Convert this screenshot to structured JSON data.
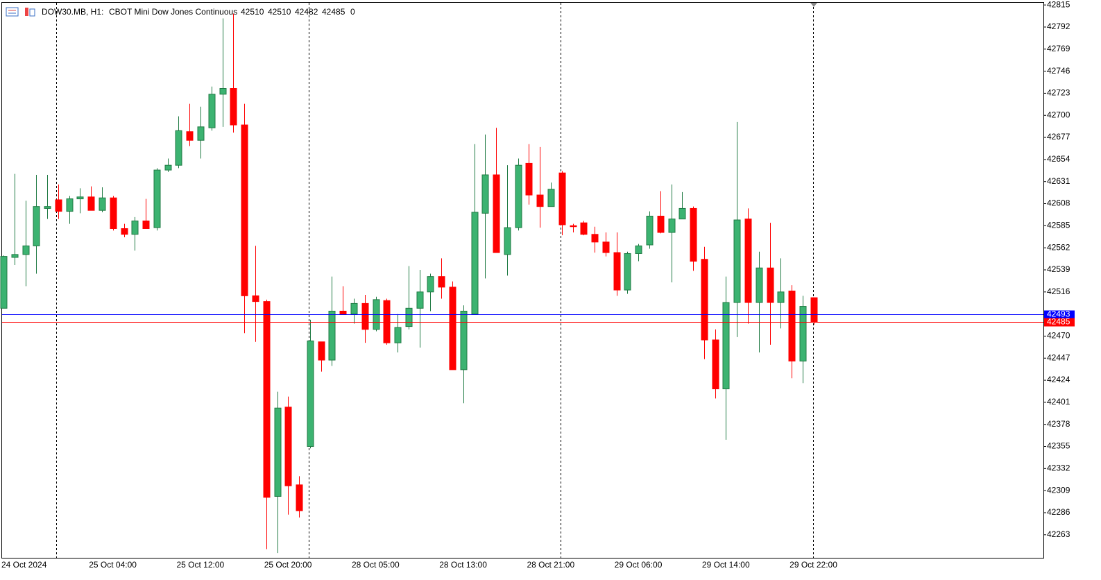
{
  "chart_data": {
    "type": "candlestick",
    "symbol": "DOW30.MB, H1:",
    "title": "CBOT Mini Dow Jones Continuous",
    "info": 0,
    "categories": [
      "24 Oct 2024",
      null,
      null,
      null,
      null,
      null,
      null,
      null,
      "25 Oct 04:00",
      null,
      null,
      null,
      null,
      null,
      null,
      null,
      "25 Oct 12:00",
      null,
      null,
      null,
      null,
      null,
      null,
      null,
      "25 Oct 20:00",
      null,
      null,
      null,
      null,
      null,
      null,
      null,
      "28 Oct 05:00",
      null,
      null,
      null,
      null,
      null,
      null,
      null,
      "28 Oct 13:00",
      null,
      null,
      null,
      null,
      null,
      null,
      null,
      "28 Oct 21:00",
      null,
      null,
      null,
      null,
      null,
      null,
      null,
      "29 Oct 06:00",
      null,
      null,
      null,
      null,
      null,
      null,
      null,
      "29 Oct 14:00",
      null,
      null,
      null,
      null,
      null,
      null,
      null,
      "29 Oct 22:00",
      null,
      null
    ],
    "open": [
      42499,
      42552,
      42555,
      42564,
      42603,
      42612,
      42600,
      42613,
      42615,
      42601,
      42614,
      42582,
      42576,
      42590,
      42583,
      42643,
      42648,
      42683,
      42674,
      42687,
      42722,
      42728,
      42690,
      42512,
      42506,
      42303,
      42396,
      42315,
      42355,
      42464,
      42445,
      42496,
      42493,
      42504,
      42477,
      42507,
      42463,
      42480,
      42499,
      42516,
      42532,
      42521,
      42435,
      42493,
      42598,
      42638,
      42555,
      42583,
      42650,
      42617,
      42605,
      42640,
      42585,
      42588,
      42576,
      42568,
      42557,
      42518,
      42556,
      42565,
      42595,
      42578,
      42592,
      42603,
      42550,
      42466,
      42415,
      42505,
      42592,
      42505,
      42541,
      42505,
      42517,
      42444,
      42510
    ],
    "high": [
      42554,
      42639,
      42611,
      42638,
      42638,
      42628,
      42616,
      42624,
      42626,
      42625,
      42616,
      42587,
      42594,
      42613,
      42645,
      42655,
      42699,
      42712,
      42709,
      42730,
      42801,
      42806,
      42712,
      42564,
      42508,
      42412,
      42407,
      42324,
      42487,
      42464,
      42532,
      42522,
      42509,
      42513,
      42511,
      42509,
      42493,
      42543,
      42539,
      42535,
      42551,
      42527,
      42502,
      42670,
      42680,
      42687,
      42648,
      42655,
      42670,
      42667,
      42630,
      42642,
      42587,
      42590,
      42584,
      42578,
      42578,
      42558,
      42566,
      42600,
      42621,
      42628,
      42620,
      42605,
      42563,
      42477,
      42532,
      42693,
      42603,
      42558,
      42588,
      42551,
      42523,
      42512,
      42510
    ],
    "low": [
      42499,
      42544,
      42522,
      42535,
      42592,
      42592,
      42587,
      42598,
      42601,
      42599,
      42580,
      42573,
      42559,
      42582,
      42580,
      42641,
      42645,
      42668,
      42655,
      42684,
      42688,
      42682,
      42473,
      42464,
      42248,
      42244,
      42284,
      42281,
      42353,
      42433,
      42439,
      42493,
      42483,
      42463,
      42475,
      42461,
      42453,
      42477,
      42458,
      42496,
      42509,
      42435,
      42400,
      42493,
      42530,
      42557,
      42533,
      42580,
      42607,
      42583,
      42605,
      42575,
      42578,
      42575,
      42557,
      42553,
      42512,
      42514,
      42548,
      42561,
      42577,
      42526,
      42592,
      42538,
      42446,
      42405,
      42362,
      42469,
      42483,
      42453,
      42461,
      42478,
      42426,
      42421,
      42482
    ],
    "close": [
      42553,
      42555,
      42564,
      42605,
      42605,
      42600,
      42613,
      42615,
      42601,
      42614,
      42582,
      42576,
      42590,
      42582,
      42643,
      42648,
      42684,
      42674,
      42688,
      42722,
      42728,
      42690,
      42512,
      42506,
      42302,
      42395,
      42314,
      42288,
      42465,
      42445,
      42496,
      42493,
      42504,
      42477,
      42508,
      42463,
      42479,
      42499,
      42516,
      42532,
      42521,
      42435,
      42496,
      42599,
      42638,
      42557,
      42583,
      42648,
      42617,
      42605,
      42623,
      42586,
      42584,
      42576,
      42568,
      42557,
      42518,
      42556,
      42564,
      42595,
      42578,
      42592,
      42603,
      42548,
      42466,
      42415,
      42505,
      42591,
      42505,
      42541,
      42505,
      42516,
      42444,
      42501,
      42485
    ],
    "up_color": "#3cb371",
    "up_line": "#1f7a43",
    "down_color": "#ff0000",
    "price_lines": [
      {
        "value": 42493,
        "color": "#0000ff"
      },
      {
        "value": 42485,
        "color": "#ff0000"
      }
    ],
    "ylim": [
      42239,
      42818
    ],
    "yticks": [
      42263,
      42286,
      42309,
      42332,
      42355,
      42378,
      42401,
      42424,
      42447,
      42470,
      42516,
      42539,
      42562,
      42585,
      42608,
      42631,
      42654,
      42677,
      42700,
      42723,
      42746,
      42769,
      42792,
      42815
    ]
  }
}
